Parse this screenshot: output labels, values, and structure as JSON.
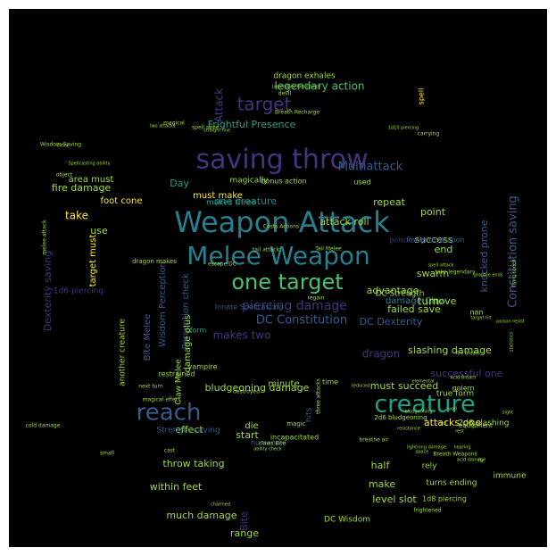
{
  "background": "#000000",
  "palette": [
    "#440154",
    "#46327e",
    "#365c8d",
    "#277f8e",
    "#1fa187",
    "#4ac16d",
    "#a0da39",
    "#fde725"
  ],
  "words": [
    {
      "t": "Weapon Attack",
      "s": 32,
      "c": "#277f8e"
    },
    {
      "t": "saving throw",
      "s": 30,
      "c": "#46327e"
    },
    {
      "t": "Melee Weapon",
      "s": 28,
      "c": "#277f8e"
    },
    {
      "t": "creature",
      "s": 27,
      "c": "#1fa187"
    },
    {
      "t": "reach",
      "s": 26,
      "c": "#365c8d"
    },
    {
      "t": "one target",
      "s": 24,
      "c": "#4ac16d"
    },
    {
      "t": "target",
      "s": 20,
      "c": "#46327e"
    },
    {
      "t": "piercing damage",
      "s": 14,
      "c": "#46327e"
    },
    {
      "t": "Multiattack",
      "s": 13,
      "c": "#365c8d"
    },
    {
      "t": "Constitution saving",
      "s": 13,
      "c": "#365c8d"
    },
    {
      "t": "DC Constitution",
      "s": 13,
      "c": "#365c8d"
    },
    {
      "t": "legendary action",
      "s": 12,
      "c": "#4ac16d"
    },
    {
      "t": "Attack",
      "s": 12,
      "c": "#46327e"
    },
    {
      "t": "attack roll",
      "s": 11,
      "c": "#a0da39"
    },
    {
      "t": "one creature",
      "s": 11,
      "c": "#277f8e"
    },
    {
      "t": "Frightful Presence",
      "s": 11,
      "c": "#1fa187"
    },
    {
      "t": "bludgeoning damage",
      "s": 11,
      "c": "#a0da39"
    },
    {
      "t": "slashing damage",
      "s": 11,
      "c": "#a0da39"
    },
    {
      "t": "must succeed",
      "s": 11,
      "c": "#a0da39"
    },
    {
      "t": "successful one",
      "s": 11,
      "c": "#46327e"
    },
    {
      "t": "DC Dexterity",
      "s": 11,
      "c": "#365c8d"
    },
    {
      "t": "within feet",
      "s": 11,
      "c": "#a0da39"
    },
    {
      "t": "much damage",
      "s": 11,
      "c": "#a0da39"
    },
    {
      "t": "throw taking",
      "s": 11,
      "c": "#a0da39"
    },
    {
      "t": "Dexterity saving",
      "s": 11,
      "c": "#46327e"
    },
    {
      "t": "Wisdom Perception",
      "s": 10,
      "c": "#365c8d"
    },
    {
      "t": "Perception check",
      "s": 10,
      "c": "#365c8d"
    },
    {
      "t": "Bite Melee",
      "s": 10,
      "c": "#365c8d"
    },
    {
      "t": "advantage",
      "s": 11,
      "c": "#a0da39"
    },
    {
      "t": "failed save",
      "s": 11,
      "c": "#a0da39"
    },
    {
      "t": "knocked prone",
      "s": 11,
      "c": "#365c8d"
    },
    {
      "t": "DC Strength",
      "s": 9,
      "c": "#a0da39"
    },
    {
      "t": "attacks one",
      "s": 11,
      "c": "#fde725"
    },
    {
      "t": "damage Claw",
      "s": 10,
      "c": "#277f8e"
    },
    {
      "t": "half",
      "s": 11,
      "c": "#a0da39"
    },
    {
      "t": "dragon",
      "s": 12,
      "c": "#46327e"
    },
    {
      "t": "make",
      "s": 11,
      "c": "#a0da39"
    },
    {
      "t": "level slot",
      "s": 11,
      "c": "#a0da39"
    },
    {
      "t": "DC Wisdom",
      "s": 9,
      "c": "#a0da39"
    },
    {
      "t": "effect",
      "s": 11,
      "c": "#a0da39"
    },
    {
      "t": "start",
      "s": 11,
      "c": "#a0da39"
    },
    {
      "t": "range",
      "s": 11,
      "c": "#a0da39"
    },
    {
      "t": "Bite",
      "s": 11,
      "c": "#46327e"
    },
    {
      "t": "take",
      "s": 12,
      "c": "#fde725"
    },
    {
      "t": "use",
      "s": 11,
      "c": "#a0da39"
    },
    {
      "t": "turn",
      "s": 12,
      "c": "#a0da39"
    },
    {
      "t": "move",
      "s": 11,
      "c": "#a0da39"
    },
    {
      "t": "end",
      "s": 11,
      "c": "#a0da39"
    },
    {
      "t": "swarm",
      "s": 11,
      "c": "#a0da39"
    },
    {
      "t": "repeat",
      "s": 11,
      "c": "#a0da39"
    },
    {
      "t": "point",
      "s": 11,
      "c": "#a0da39"
    },
    {
      "t": "success",
      "s": 11,
      "c": "#a0da39"
    },
    {
      "t": "Day",
      "s": 11,
      "c": "#1fa187"
    },
    {
      "t": "fire damage",
      "s": 11,
      "c": "#a0da39"
    },
    {
      "t": "foot cone",
      "s": 10,
      "c": "#fde725"
    },
    {
      "t": "area must",
      "s": 10,
      "c": "#a0da39"
    },
    {
      "t": "must make",
      "s": 10,
      "c": "#fde725"
    },
    {
      "t": "makes three",
      "s": 9,
      "c": "#1fa187"
    },
    {
      "t": "makes two",
      "s": 12,
      "c": "#46327e"
    },
    {
      "t": "1d6 piercing",
      "s": 9,
      "c": "#46327e"
    },
    {
      "t": "target must",
      "s": 10,
      "c": "#fde725"
    },
    {
      "t": "another creature",
      "s": 9,
      "c": "#a0da39"
    },
    {
      "t": "Claw Melee",
      "s": 9,
      "c": "#a0da39"
    },
    {
      "t": "damage plus",
      "s": 10,
      "c": "#a0da39"
    },
    {
      "t": "minute",
      "s": 10,
      "c": "#a0da39"
    },
    {
      "t": "die",
      "s": 10,
      "c": "#a0da39"
    },
    {
      "t": "hits",
      "s": 9,
      "c": "#365c8d"
    },
    {
      "t": "Strength saving",
      "s": 9,
      "c": "#365c8d"
    },
    {
      "t": "2d6 slashing",
      "s": 9,
      "c": "#a0da39"
    },
    {
      "t": "true form",
      "s": 9,
      "c": "#a0da39"
    },
    {
      "t": "turns ending",
      "s": 9,
      "c": "#a0da39"
    },
    {
      "t": "immune",
      "s": 9,
      "c": "#a0da39"
    },
    {
      "t": "rely",
      "s": 9,
      "c": "#a0da39"
    },
    {
      "t": "1d8 piercing",
      "s": 8,
      "c": "#a0da39"
    },
    {
      "t": "incapacitated",
      "s": 8,
      "c": "#a0da39"
    },
    {
      "t": "humanoid",
      "s": 8,
      "c": "#365c8d"
    },
    {
      "t": "dragon exhales",
      "s": 9,
      "c": "#a0da39"
    },
    {
      "t": "magically",
      "s": 9,
      "c": "#a0da39"
    },
    {
      "t": "bonus action",
      "s": 8,
      "c": "#a0da39"
    },
    {
      "t": "used",
      "s": 8,
      "c": "#a0da39"
    },
    {
      "t": "spell",
      "s": 8,
      "c": "#fde725"
    },
    {
      "t": "poison damage",
      "s": 8,
      "c": "#46327e"
    },
    {
      "t": "Ranged Weapon",
      "s": 8,
      "c": "#365c8d"
    },
    {
      "t": "Innate Spellcasting",
      "s": 8,
      "c": "#365c8d"
    },
    {
      "t": "vampire",
      "s": 8,
      "c": "#a0da39"
    },
    {
      "t": "form",
      "s": 8,
      "c": "#1fa187"
    },
    {
      "t": "magic",
      "s": 7,
      "c": "#a0da39"
    },
    {
      "t": "time",
      "s": 8,
      "c": "#a0da39"
    },
    {
      "t": "restrained",
      "s": 8,
      "c": "#a0da39"
    },
    {
      "t": "2d6 bludgeoning",
      "s": 7,
      "c": "#a0da39"
    },
    {
      "t": "golem",
      "s": 8,
      "c": "#a0da39"
    },
    {
      "t": "equipment",
      "s": 7,
      "c": "#a0da39"
    },
    {
      "t": "nan",
      "s": 8,
      "c": "#a0da39"
    },
    {
      "t": "Wisdom Saving",
      "s": 6,
      "c": "#a0da39"
    },
    {
      "t": "melee attack",
      "s": 6,
      "c": "#a0da39"
    },
    {
      "t": "magical effect",
      "s": 6,
      "c": "#a0da39"
    },
    {
      "t": "cold damage",
      "s": 6,
      "c": "#a0da39"
    },
    {
      "t": "three attacks",
      "s": 6,
      "c": "#a0da39"
    },
    {
      "t": "breathe air",
      "s": 6,
      "c": "#a0da39"
    },
    {
      "t": "Breath Weapons",
      "s": 6,
      "c": "#a0da39"
    },
    {
      "t": "Legendary Resistance",
      "s": 5,
      "c": "#a0da39"
    },
    {
      "t": "Breath Recharge",
      "s": 6,
      "c": "#a0da39"
    },
    {
      "t": "spell save",
      "s": 6,
      "c": "#a0da39"
    },
    {
      "t": "escape DC",
      "s": 6,
      "c": "#a0da39"
    },
    {
      "t": "Costs Actions",
      "s": 6,
      "c": "#a0da39"
    },
    {
      "t": "tail attack",
      "s": 6,
      "c": "#a0da39"
    },
    {
      "t": "Tail Melee",
      "s": 6,
      "c": "#a0da39"
    },
    {
      "t": "take legendary",
      "s": 6,
      "c": "#a0da39"
    },
    {
      "t": "dragon makes",
      "s": 7,
      "c": "#a0da39"
    },
    {
      "t": "regain",
      "s": 6,
      "c": "#a0da39"
    },
    {
      "t": "destroyed",
      "s": 6,
      "c": "#a0da39"
    },
    {
      "t": "frightened",
      "s": 6,
      "c": "#a0da39"
    },
    {
      "t": "charmed",
      "s": 5,
      "c": "#a0da39"
    },
    {
      "t": "small",
      "s": 6,
      "c": "#a0da39"
    },
    {
      "t": "cast",
      "s": 6,
      "c": "#a0da39"
    },
    {
      "t": "claws Bite",
      "s": 6,
      "c": "#a0da39"
    },
    {
      "t": "devil",
      "s": 6,
      "c": "#a0da39"
    },
    {
      "t": "carrying",
      "s": 6,
      "c": "#a0da39"
    },
    {
      "t": "reduced",
      "s": 5,
      "c": "#a0da39"
    },
    {
      "t": "elemental",
      "s": 5,
      "c": "#a0da39"
    },
    {
      "t": "next turn",
      "s": 6,
      "c": "#a0da39"
    },
    {
      "t": "Spellcasting ability",
      "s": 5,
      "c": "#a0da39"
    },
    {
      "t": "object",
      "s": 6,
      "c": "#a0da39"
    },
    {
      "t": "extra",
      "s": 5,
      "c": "#a0da39"
    },
    {
      "t": "magical",
      "s": 6,
      "c": "#a0da39"
    },
    {
      "t": "two attacks",
      "s": 5,
      "c": "#a0da39"
    },
    {
      "t": "straight line",
      "s": 5,
      "c": "#a0da39"
    },
    {
      "t": "1d10 piercing",
      "s": 5,
      "c": "#a0da39"
    },
    {
      "t": "spell attack",
      "s": 5,
      "c": "#a0da39"
    },
    {
      "t": "grapple ends",
      "s": 5,
      "c": "#a0da39"
    },
    {
      "t": "flying speed",
      "s": 5,
      "c": "#a0da39"
    },
    {
      "t": "statistics",
      "s": 5,
      "c": "#a0da39"
    },
    {
      "t": "poison resist",
      "s": 5,
      "c": "#a0da39"
    },
    {
      "t": "target hit",
      "s": 5,
      "c": "#a0da39"
    },
    {
      "t": "Fire Breath",
      "s": 5,
      "c": "#a0da39"
    },
    {
      "t": "Acid Breath",
      "s": 5,
      "c": "#a0da39"
    },
    {
      "t": "ability check",
      "s": 5,
      "c": "#a0da39"
    },
    {
      "t": "bludgeoning",
      "s": 5,
      "c": "#a0da39"
    },
    {
      "t": "lightning damage",
      "s": 5,
      "c": "#a0da39"
    },
    {
      "t": "hearing",
      "s": 5,
      "c": "#a0da39"
    },
    {
      "t": "fly",
      "s": 5,
      "c": "#a0da39"
    },
    {
      "t": "sight",
      "s": 5,
      "c": "#a0da39"
    },
    {
      "t": "resistance",
      "s": 5,
      "c": "#a0da39"
    },
    {
      "t": "acid damage",
      "s": 5,
      "c": "#a0da39"
    },
    {
      "t": "wall",
      "s": 5,
      "c": "#a0da39"
    },
    {
      "t": "space",
      "s": 5,
      "c": "#a0da39"
    },
    {
      "t": "hour",
      "s": 5,
      "c": "#a0da39"
    },
    {
      "t": "rest",
      "s": 5,
      "c": "#a0da39"
    }
  ]
}
